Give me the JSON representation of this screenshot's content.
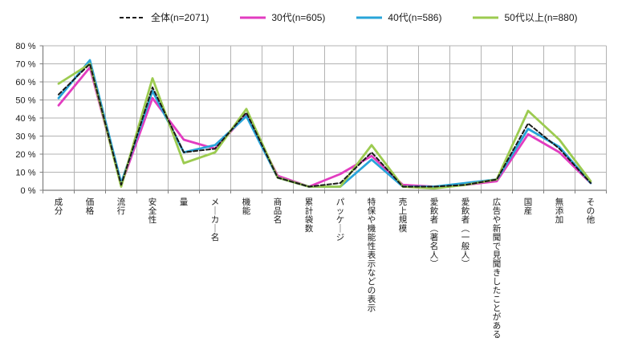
{
  "legend": [
    {
      "name": "全体(n=2071)",
      "color": "#1a1a1a",
      "dashed": true
    },
    {
      "name": "30代(n=605)",
      "color": "#e23cc0",
      "dashed": false
    },
    {
      "name": "40代(n=586)",
      "color": "#28a4d9",
      "dashed": false
    },
    {
      "name": "50代以上(n=880)",
      "color": "#9ccb50",
      "dashed": false
    }
  ],
  "chart_data": {
    "type": "line",
    "categories": [
      "成分",
      "価格",
      "流行",
      "安全性",
      "量",
      "メーカー名",
      "機能",
      "商品名",
      "累計袋数",
      "パッケージ",
      "特保や機能性表示などの表示",
      "売上規模",
      "愛飲者（著名人）",
      "愛飲者（一般人）",
      "広告や新聞で見聞きしたことがある",
      "国産",
      "無添加",
      "その他"
    ],
    "series": [
      {
        "name": "全体(n=2071)",
        "color": "#1a1a1a",
        "dashed": true,
        "values": [
          53,
          70,
          3,
          57,
          21,
          23,
          43,
          7,
          2,
          4,
          21,
          2,
          2,
          3,
          6,
          37,
          23,
          4
        ]
      },
      {
        "name": "30代(n=605)",
        "color": "#e23cc0",
        "dashed": false,
        "values": [
          47,
          68,
          3,
          51,
          28,
          23,
          42,
          8,
          2,
          9,
          19,
          3,
          2,
          3,
          5,
          31,
          21,
          4
        ]
      },
      {
        "name": "40代(n=586)",
        "color": "#28a4d9",
        "dashed": false,
        "values": [
          51,
          72,
          4,
          55,
          21,
          25,
          41,
          7,
          2,
          2,
          17,
          2,
          2,
          4,
          6,
          34,
          24,
          4
        ]
      },
      {
        "name": "50代以上(n=880)",
        "color": "#9ccb50",
        "dashed": false,
        "values": [
          59,
          70,
          2,
          62,
          15,
          21,
          45,
          7,
          2,
          2,
          25,
          2,
          1,
          3,
          6,
          44,
          28,
          5
        ]
      }
    ],
    "ylim": [
      0,
      80
    ],
    "ytick_step": 10,
    "ytick_labels": [
      "0 %",
      "10 %",
      "20 %",
      "30 %",
      "40 %",
      "50 %",
      "60 %",
      "70 %",
      "80 %"
    ],
    "grid": true,
    "legend_position": "top",
    "colors": {
      "grid": "#b3b3b3",
      "axis": "#7f7f7f",
      "text": "#1a1a1a"
    }
  }
}
